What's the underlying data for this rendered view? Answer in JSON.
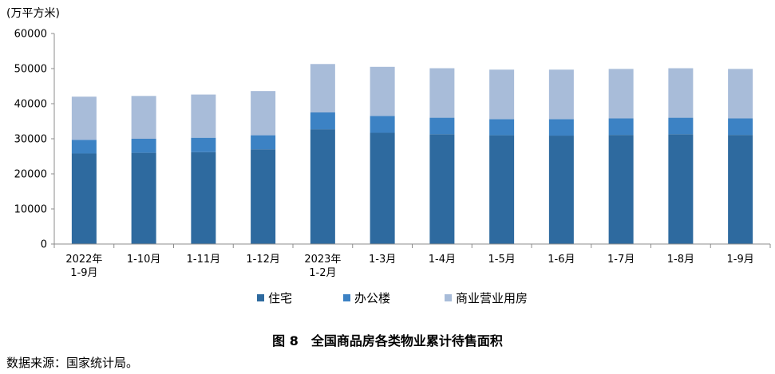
{
  "chart_data": {
    "type": "bar",
    "stacked": true,
    "unit_label": "(万平方米)",
    "categories": [
      [
        "2022年",
        "1-9月"
      ],
      [
        "1-10月"
      ],
      [
        "1-11月"
      ],
      [
        "1-12月"
      ],
      [
        "2023年",
        "1-2月"
      ],
      [
        "1-3月"
      ],
      [
        "1-4月"
      ],
      [
        "1-5月"
      ],
      [
        "1-6月"
      ],
      [
        "1-7月"
      ],
      [
        "1-8月"
      ],
      [
        "1-9月"
      ]
    ],
    "series": [
      {
        "name": "住宅",
        "color": "#2e6a9f",
        "values": [
          25800,
          26000,
          26200,
          27000,
          32700,
          31700,
          31300,
          31000,
          30900,
          31100,
          31300,
          31100
        ]
      },
      {
        "name": "办公楼",
        "color": "#3c82c4",
        "values": [
          3900,
          4000,
          4100,
          4000,
          4800,
          4800,
          4700,
          4600,
          4700,
          4700,
          4700,
          4700
        ]
      },
      {
        "name": "商业营业用房",
        "color": "#a8bcd9",
        "values": [
          12300,
          12200,
          12300,
          12600,
          13800,
          14000,
          14100,
          14100,
          14100,
          14100,
          14100,
          14100
        ]
      }
    ],
    "ylim": [
      0,
      60000
    ],
    "yticks": [
      0,
      10000,
      20000,
      30000,
      40000,
      50000,
      60000
    ],
    "grid": false,
    "legend_position": "bottom"
  },
  "caption": "图 8　全国商品房各类物业累计待售面积",
  "source": "数据来源：国家统计局。"
}
